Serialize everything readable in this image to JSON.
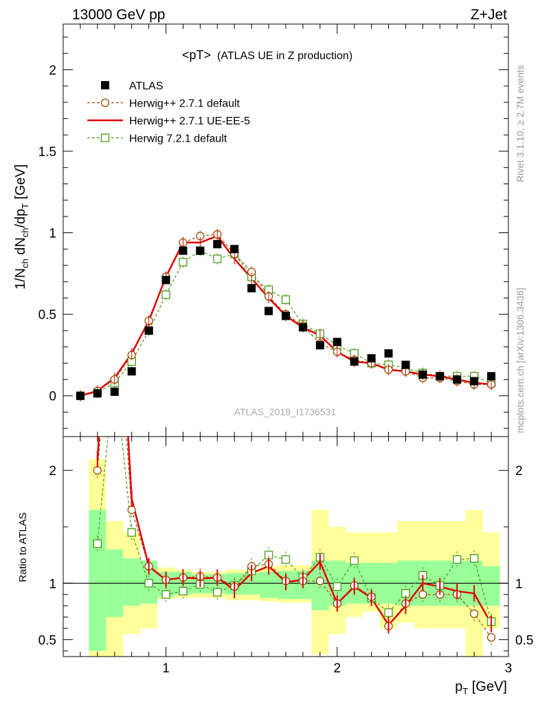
{
  "header": {
    "left": "13000 GeV pp",
    "right": "Z+Jet"
  },
  "side_labels": {
    "rivet": "Rivet 3.1.10, ≥ 2.7M events",
    "mcplots": "mcplots.cern.ch [arXiv:1306.3436]"
  },
  "chart_data": {
    "type": "scatter",
    "title": "<pT>",
    "subtitle": "(ATLAS UE in Z production)",
    "watermark": "ATLAS_2019_I1736531",
    "xlabel": "p_T [GeV]",
    "ylabel": "1/N_ch dN_ch/dp_T [GeV]",
    "ratio_ylabel": "Ratio to ATLAS",
    "xlim": [
      0.4,
      3.0
    ],
    "ylim": [
      -0.25,
      2.28
    ],
    "ratio_ylim": [
      0.35,
      2.3
    ],
    "x_ticks": [
      "1",
      "2",
      "3"
    ],
    "y_ticks": [
      "0",
      "0.5",
      "1",
      "1.5",
      "2"
    ],
    "ratio_y_ticks": [
      "0.5",
      "1",
      "2"
    ],
    "legend_position": "top-left",
    "x": [
      0.5,
      0.6,
      0.7,
      0.8,
      0.9,
      1.0,
      1.1,
      1.2,
      1.3,
      1.4,
      1.5,
      1.6,
      1.7,
      1.8,
      1.9,
      2.0,
      2.1,
      2.2,
      2.3,
      2.4,
      2.5,
      2.6,
      2.7,
      2.8,
      2.9
    ],
    "series": [
      {
        "name": "ATLAS",
        "color": "#000000",
        "marker": "filled-square",
        "values": [
          0.0,
          0.015,
          0.025,
          0.15,
          0.4,
          0.71,
          0.89,
          0.89,
          0.93,
          0.9,
          0.66,
          0.52,
          0.49,
          0.42,
          0.31,
          0.33,
          0.21,
          0.23,
          0.26,
          0.19,
          0.13,
          0.12,
          0.1,
          0.09,
          0.12
        ]
      },
      {
        "name": "Herwig++ 2.7.1 default",
        "color": "#994d00",
        "marker": "open-circle",
        "line": "dashed",
        "values": [
          0.0,
          0.03,
          0.1,
          0.25,
          0.46,
          0.73,
          0.94,
          0.98,
          0.99,
          0.87,
          0.76,
          0.61,
          0.5,
          0.43,
          0.32,
          0.27,
          0.22,
          0.2,
          0.16,
          0.15,
          0.11,
          0.11,
          0.09,
          0.07,
          0.07
        ]
      },
      {
        "name": "Herwig++ 2.7.1 UE-EE-5",
        "color": "#e00000",
        "marker": "none",
        "line": "solid",
        "values": [
          0.0,
          0.03,
          0.11,
          0.26,
          0.46,
          0.73,
          0.94,
          0.94,
          0.98,
          0.84,
          0.72,
          0.6,
          0.49,
          0.42,
          0.37,
          0.27,
          0.21,
          0.2,
          0.16,
          0.15,
          0.13,
          0.12,
          0.1,
          0.08,
          0.07
        ]
      },
      {
        "name": "Herwig 7.2.1 default",
        "color": "#4a9a1a",
        "marker": "open-square",
        "line": "dashed",
        "values": [
          0.0,
          0.02,
          0.08,
          0.21,
          0.4,
          0.62,
          0.82,
          0.89,
          0.84,
          0.87,
          0.73,
          0.65,
          0.59,
          0.44,
          0.38,
          0.31,
          0.26,
          0.2,
          0.19,
          0.17,
          0.14,
          0.12,
          0.12,
          0.12,
          0.08
        ]
      }
    ],
    "ratio": {
      "atlas_band_inner": [
        0.0,
        1.65,
        1.3,
        1.22,
        1.2,
        1.1,
        1.1,
        1.08,
        1.08,
        1.09,
        1.09,
        1.1,
        1.11,
        1.11,
        1.2,
        1.2,
        1.18,
        1.18,
        1.18,
        1.2,
        1.2,
        1.2,
        1.2,
        1.2,
        1.15
      ],
      "atlas_band_inner_low": [
        0.0,
        0.4,
        0.7,
        0.8,
        0.82,
        0.88,
        0.9,
        0.91,
        0.91,
        0.9,
        0.9,
        0.87,
        0.86,
        0.86,
        0.76,
        0.8,
        0.82,
        0.82,
        0.82,
        0.8,
        0.8,
        0.8,
        0.8,
        0.8,
        0.8
      ],
      "atlas_band_outer": [
        0.0,
        2.1,
        1.55,
        1.45,
        1.18,
        1.14,
        1.12,
        1.1,
        1.1,
        1.12,
        1.12,
        1.15,
        1.16,
        1.16,
        1.65,
        1.5,
        1.45,
        1.45,
        1.45,
        1.55,
        1.55,
        1.55,
        1.55,
        1.65,
        1.45
      ],
      "atlas_band_outer_low": [
        0.0,
        0.35,
        0.35,
        0.55,
        0.6,
        0.86,
        0.87,
        0.87,
        0.87,
        0.85,
        0.85,
        0.84,
        0.83,
        0.83,
        0.37,
        0.55,
        0.7,
        0.75,
        0.6,
        0.65,
        0.6,
        0.6,
        0.6,
        0.35,
        0.6
      ],
      "series": [
        {
          "name": "Herwig++ 2.7.1 default",
          "values": [
            null,
            2.0,
            3.8,
            1.65,
            1.15,
            1.03,
            1.05,
            1.06,
            1.05,
            0.97,
            1.15,
            1.17,
            1.02,
            1.02,
            1.02,
            0.82,
            0.98,
            0.88,
            0.62,
            0.82,
            0.9,
            0.9,
            0.9,
            0.73,
            0.52
          ]
        },
        {
          "name": "Herwig++ 2.7.1 UE-EE-5",
          "values": [
            null,
            2.1,
            4.4,
            1.75,
            1.15,
            1.03,
            1.05,
            1.04,
            1.05,
            0.94,
            1.09,
            1.15,
            1.01,
            1.03,
            1.19,
            0.82,
            0.97,
            0.87,
            0.63,
            0.8,
            1.0,
            0.97,
            0.93,
            0.91,
            0.64
          ]
        },
        {
          "name": "Herwig 7.2.1 default",
          "values": [
            null,
            1.35,
            2.9,
            1.45,
            1.0,
            0.9,
            0.93,
            0.99,
            0.92,
            0.98,
            1.11,
            1.25,
            1.21,
            1.05,
            1.23,
            0.97,
            1.2,
            0.87,
            0.74,
            0.91,
            1.07,
            0.98,
            1.21,
            1.22,
            0.66
          ]
        }
      ]
    }
  }
}
